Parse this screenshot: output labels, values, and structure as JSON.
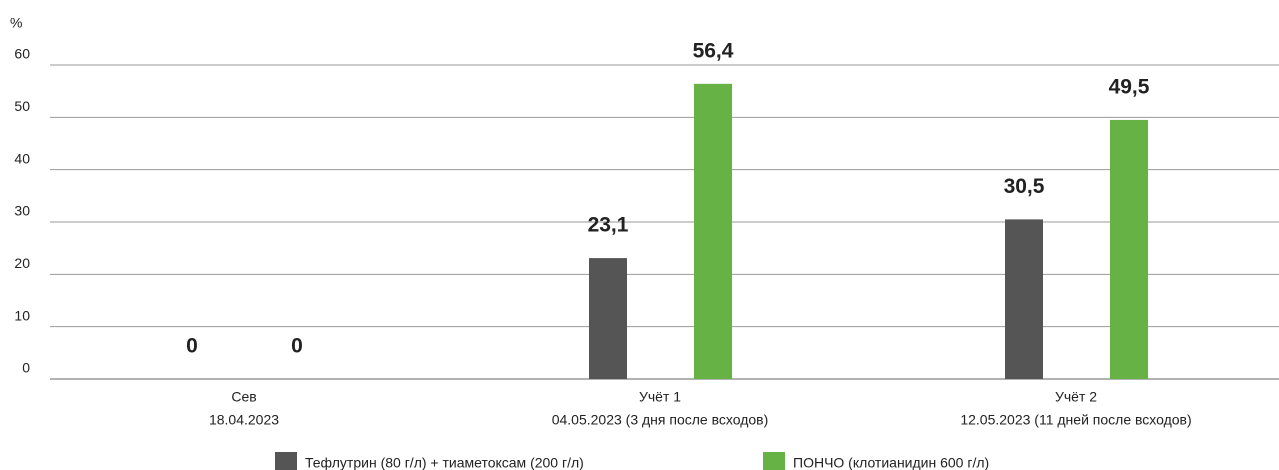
{
  "chart_data": {
    "type": "bar",
    "y_label": "%",
    "categories": [
      [
        "Сев",
        "18.04.2023"
      ],
      [
        "Учёт 1",
        "04.05.2023 (3 дня после всходов)"
      ],
      [
        "Учёт 2",
        "12.05.2023 (11 дней после всходов)"
      ]
    ],
    "series": [
      {
        "name": "Тефлутрин (80 г/л) + тиаметоксам (200 г/л)",
        "color": "#555555",
        "values": [
          0,
          23.1,
          30.5
        ],
        "value_labels": [
          "0",
          "23,1",
          "30,5"
        ]
      },
      {
        "name": "ПОНЧО (клотианидин 600 г/л)",
        "color": "#66b245",
        "values": [
          0,
          56.4,
          49.5
        ],
        "value_labels": [
          "0",
          "56,4",
          "49,5"
        ]
      }
    ],
    "ylim": [
      0,
      60
    ],
    "yticks": [
      0,
      10,
      20,
      30,
      40,
      50,
      60
    ],
    "grid": true,
    "legend": "bottom"
  }
}
